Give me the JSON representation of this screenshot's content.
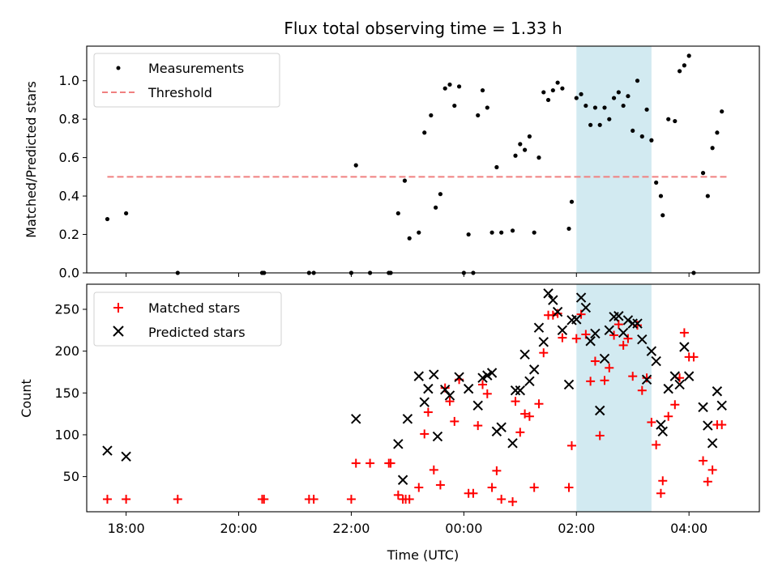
{
  "title": "Flux total observing time = 1.33 h",
  "xlabel": "Time (UTC)",
  "x_ticks": [
    {
      "label": "18:00",
      "h": 18
    },
    {
      "label": "20:00",
      "h": 20
    },
    {
      "label": "22:00",
      "h": 22
    },
    {
      "label": "00:00",
      "h": 24
    },
    {
      "label": "02:00",
      "h": 26
    },
    {
      "label": "04:00",
      "h": 28
    }
  ],
  "highlight": {
    "start": "02:00",
    "end": "03:20",
    "color": "#add8e6"
  },
  "chart_data": [
    {
      "type": "scatter",
      "ylabel": "Matched/Predicted stars",
      "ylim": [
        0,
        1.18
      ],
      "yticks": [
        "0.0",
        "0.2",
        "0.4",
        "0.6",
        "0.8",
        "1.0"
      ],
      "legend": "top-left",
      "threshold": {
        "name": "Threshold",
        "y": 0.5,
        "x_range": [
          "17:40",
          "04:40"
        ],
        "color": "#f08080"
      },
      "series": [
        {
          "name": "Measurements",
          "color": "#000000",
          "marker": "dot",
          "points": [
            [
              "17:40",
              0.28
            ],
            [
              "18:00",
              0.31
            ],
            [
              "18:55",
              0.0
            ],
            [
              "20:25",
              0.0
            ],
            [
              "20:27",
              0.0
            ],
            [
              "21:15",
              0.0
            ],
            [
              "21:20",
              0.0
            ],
            [
              "22:00",
              0.0
            ],
            [
              "22:05",
              0.56
            ],
            [
              "22:20",
              0.0
            ],
            [
              "22:40",
              0.0
            ],
            [
              "22:42",
              0.0
            ],
            [
              "22:50",
              0.31
            ],
            [
              "22:57",
              0.48
            ],
            [
              "23:02",
              0.18
            ],
            [
              "23:12",
              0.21
            ],
            [
              "23:18",
              0.73
            ],
            [
              "23:25",
              0.82
            ],
            [
              "23:30",
              0.34
            ],
            [
              "23:35",
              0.41
            ],
            [
              "23:40",
              0.96
            ],
            [
              "23:45",
              0.98
            ],
            [
              "23:50",
              0.87
            ],
            [
              "23:55",
              0.97
            ],
            [
              "00:00",
              0.0
            ],
            [
              "00:05",
              0.2
            ],
            [
              "00:10",
              0.0
            ],
            [
              "00:15",
              0.82
            ],
            [
              "00:20",
              0.95
            ],
            [
              "00:25",
              0.86
            ],
            [
              "00:30",
              0.21
            ],
            [
              "00:35",
              0.55
            ],
            [
              "00:40",
              0.21
            ],
            [
              "00:52",
              0.22
            ],
            [
              "00:55",
              0.61
            ],
            [
              "01:00",
              0.67
            ],
            [
              "01:05",
              0.64
            ],
            [
              "01:10",
              0.71
            ],
            [
              "01:15",
              0.21
            ],
            [
              "01:20",
              0.6
            ],
            [
              "01:25",
              0.94
            ],
            [
              "01:30",
              0.9
            ],
            [
              "01:35",
              0.95
            ],
            [
              "01:40",
              0.99
            ],
            [
              "01:45",
              0.96
            ],
            [
              "01:52",
              0.23
            ],
            [
              "01:55",
              0.37
            ],
            [
              "02:00",
              0.91
            ],
            [
              "02:05",
              0.93
            ],
            [
              "02:10",
              0.87
            ],
            [
              "02:15",
              0.77
            ],
            [
              "02:20",
              0.86
            ],
            [
              "02:25",
              0.77
            ],
            [
              "02:30",
              0.86
            ],
            [
              "02:35",
              0.8
            ],
            [
              "02:40",
              0.91
            ],
            [
              "02:45",
              0.94
            ],
            [
              "02:50",
              0.87
            ],
            [
              "02:55",
              0.92
            ],
            [
              "03:00",
              0.74
            ],
            [
              "03:05",
              1.0
            ],
            [
              "03:10",
              0.71
            ],
            [
              "03:15",
              0.85
            ],
            [
              "03:20",
              0.69
            ],
            [
              "03:25",
              0.47
            ],
            [
              "03:30",
              0.4
            ],
            [
              "03:32",
              0.3
            ],
            [
              "03:38",
              0.8
            ],
            [
              "03:45",
              0.79
            ],
            [
              "03:50",
              1.05
            ],
            [
              "03:55",
              1.08
            ],
            [
              "04:00",
              1.13
            ],
            [
              "04:05",
              0.0
            ],
            [
              "04:15",
              0.52
            ],
            [
              "04:20",
              0.4
            ],
            [
              "04:25",
              0.65
            ],
            [
              "04:30",
              0.73
            ],
            [
              "04:35",
              0.84
            ]
          ]
        }
      ]
    },
    {
      "type": "scatter",
      "ylabel": "Count",
      "ylim": [
        8,
        280
      ],
      "yticks": [
        "50",
        "100",
        "150",
        "200",
        "250"
      ],
      "legend": "top-left",
      "series": [
        {
          "name": "Matched stars",
          "color": "#ff0000",
          "marker": "plus",
          "points": [
            [
              "17:40",
              23
            ],
            [
              "18:00",
              23
            ],
            [
              "18:55",
              23
            ],
            [
              "20:25",
              23
            ],
            [
              "20:27",
              23
            ],
            [
              "21:15",
              23
            ],
            [
              "21:20",
              23
            ],
            [
              "22:00",
              23
            ],
            [
              "22:05",
              66
            ],
            [
              "22:20",
              66
            ],
            [
              "22:40",
              66
            ],
            [
              "22:42",
              66
            ],
            [
              "22:50",
              28
            ],
            [
              "22:55",
              23
            ],
            [
              "22:58",
              23
            ],
            [
              "23:02",
              23
            ],
            [
              "23:12",
              37
            ],
            [
              "23:18",
              101
            ],
            [
              "23:22",
              127
            ],
            [
              "23:28",
              58
            ],
            [
              "23:35",
              40
            ],
            [
              "23:40",
              156
            ],
            [
              "23:45",
              140
            ],
            [
              "23:50",
              116
            ],
            [
              "23:55",
              166
            ],
            [
              "00:05",
              30
            ],
            [
              "00:10",
              30
            ],
            [
              "00:15",
              111
            ],
            [
              "00:20",
              160
            ],
            [
              "00:25",
              149
            ],
            [
              "00:30",
              37
            ],
            [
              "00:35",
              57
            ],
            [
              "00:40",
              23
            ],
            [
              "00:52",
              20
            ],
            [
              "00:55",
              140
            ],
            [
              "01:00",
              103
            ],
            [
              "01:05",
              125
            ],
            [
              "01:10",
              122
            ],
            [
              "01:15",
              37
            ],
            [
              "01:20",
              137
            ],
            [
              "01:25",
              198
            ],
            [
              "01:30",
              243
            ],
            [
              "01:35",
              243
            ],
            [
              "01:40",
              245
            ],
            [
              "01:45",
              216
            ],
            [
              "01:52",
              37
            ],
            [
              "01:55",
              87
            ],
            [
              "02:00",
              215
            ],
            [
              "02:05",
              244
            ],
            [
              "02:10",
              220
            ],
            [
              "02:15",
              164
            ],
            [
              "02:20",
              188
            ],
            [
              "02:25",
              99
            ],
            [
              "02:30",
              165
            ],
            [
              "02:35",
              180
            ],
            [
              "02:40",
              219
            ],
            [
              "02:45",
              232
            ],
            [
              "02:50",
              207
            ],
            [
              "02:55",
              215
            ],
            [
              "03:00",
              170
            ],
            [
              "03:05",
              231
            ],
            [
              "03:10",
              153
            ],
            [
              "03:15",
              168
            ],
            [
              "03:20",
              115
            ],
            [
              "03:25",
              88
            ],
            [
              "03:30",
              30
            ],
            [
              "03:32",
              45
            ],
            [
              "03:38",
              122
            ],
            [
              "03:45",
              136
            ],
            [
              "03:50",
              168
            ],
            [
              "03:55",
              222
            ],
            [
              "04:00",
              193
            ],
            [
              "04:05",
              193
            ],
            [
              "04:15",
              69
            ],
            [
              "04:20",
              44
            ],
            [
              "04:25",
              58
            ],
            [
              "04:30",
              112
            ],
            [
              "04:35",
              112
            ]
          ]
        },
        {
          "name": "Predicted stars",
          "color": "#000000",
          "marker": "x",
          "points": [
            [
              "17:40",
              81
            ],
            [
              "18:00",
              74
            ],
            [
              "22:05",
              119
            ],
            [
              "22:50",
              89
            ],
            [
              "22:55",
              46
            ],
            [
              "23:00",
              119
            ],
            [
              "23:12",
              170
            ],
            [
              "23:18",
              139
            ],
            [
              "23:22",
              155
            ],
            [
              "23:28",
              172
            ],
            [
              "23:32",
              98
            ],
            [
              "23:40",
              154
            ],
            [
              "23:45",
              147
            ],
            [
              "23:55",
              169
            ],
            [
              "00:05",
              155
            ],
            [
              "00:15",
              135
            ],
            [
              "00:20",
              168
            ],
            [
              "00:25",
              171
            ],
            [
              "00:30",
              174
            ],
            [
              "00:35",
              104
            ],
            [
              "00:40",
              109
            ],
            [
              "00:52",
              90
            ],
            [
              "00:55",
              153
            ],
            [
              "01:00",
              153
            ],
            [
              "01:05",
              196
            ],
            [
              "01:10",
              164
            ],
            [
              "01:15",
              178
            ],
            [
              "01:20",
              228
            ],
            [
              "01:25",
              211
            ],
            [
              "01:30",
              269
            ],
            [
              "01:35",
              261
            ],
            [
              "01:40",
              247
            ],
            [
              "01:45",
              225
            ],
            [
              "01:52",
              160
            ],
            [
              "01:55",
              237
            ],
            [
              "02:00",
              238
            ],
            [
              "02:05",
              264
            ],
            [
              "02:10",
              252
            ],
            [
              "02:15",
              212
            ],
            [
              "02:20",
              221
            ],
            [
              "02:25",
              129
            ],
            [
              "02:30",
              191
            ],
            [
              "02:35",
              225
            ],
            [
              "02:40",
              241
            ],
            [
              "02:45",
              242
            ],
            [
              "02:50",
              222
            ],
            [
              "02:55",
              237
            ],
            [
              "03:00",
              233
            ],
            [
              "03:05",
              233
            ],
            [
              "03:10",
              214
            ],
            [
              "03:15",
              166
            ],
            [
              "03:20",
              200
            ],
            [
              "03:25",
              188
            ],
            [
              "03:30",
              112
            ],
            [
              "03:32",
              104
            ],
            [
              "03:38",
              155
            ],
            [
              "03:45",
              170
            ],
            [
              "03:50",
              160
            ],
            [
              "03:55",
              205
            ],
            [
              "04:00",
              170
            ],
            [
              "04:15",
              133
            ],
            [
              "04:20",
              111
            ],
            [
              "04:25",
              90
            ],
            [
              "04:30",
              152
            ],
            [
              "04:35",
              135
            ]
          ]
        }
      ]
    }
  ]
}
